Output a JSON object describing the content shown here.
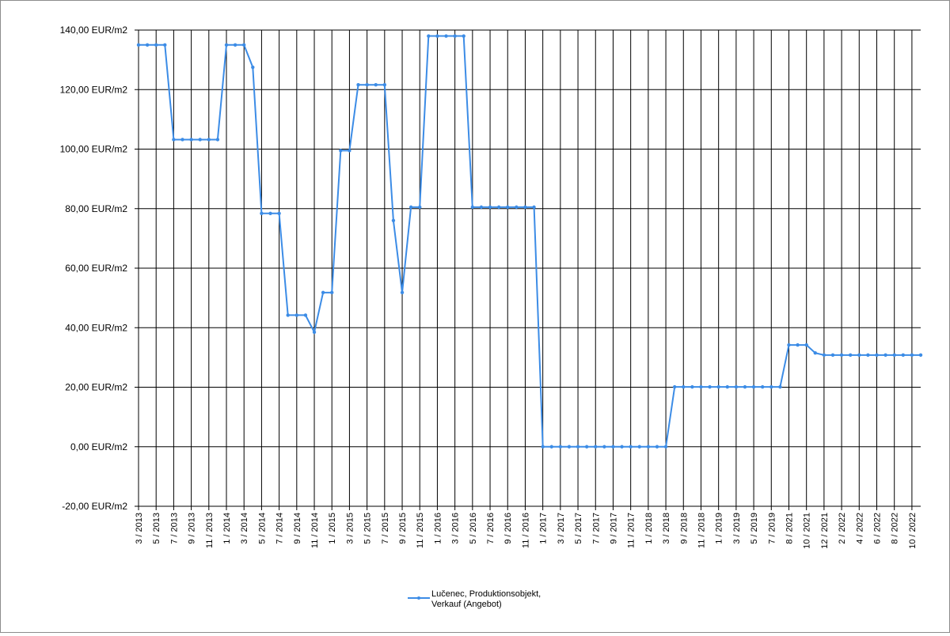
{
  "chart_data": {
    "type": "line",
    "x": [
      "3 / 2013",
      "4 / 2013",
      "5 / 2013",
      "6 / 2013",
      "7 / 2013",
      "8 / 2013",
      "9 / 2013",
      "10 / 2013",
      "11 / 2013",
      "12 / 2013",
      "1 / 2014",
      "2 / 2014",
      "3 / 2014",
      "4 / 2014",
      "5 / 2014",
      "6 / 2014",
      "7 / 2014",
      "8 / 2014",
      "9 / 2014",
      "10 / 2014",
      "11 / 2014",
      "12 / 2014",
      "1 / 2015",
      "2 / 2015",
      "3 / 2015",
      "4 / 2015",
      "5 / 2015",
      "6 / 2015",
      "7 / 2015",
      "8 / 2015",
      "9 / 2015",
      "10 / 2015",
      "11 / 2015",
      "12 / 2015",
      "1 / 2016",
      "2 / 2016",
      "3 / 2016",
      "4 / 2016",
      "5 / 2016",
      "6 / 2016",
      "7 / 2016",
      "8 / 2016",
      "9 / 2016",
      "10 / 2016",
      "11 / 2016",
      "12 / 2016",
      "1 / 2017",
      "2 / 2017",
      "3 / 2017",
      "4 / 2017",
      "5 / 2017",
      "6 / 2017",
      "7 / 2017",
      "8 / 2017",
      "9 / 2017",
      "10 / 2017",
      "11 / 2017",
      "12 / 2017",
      "1 / 2018",
      "2 / 2018",
      "3 / 2018",
      "8 / 2018",
      "9 / 2018",
      "10 / 2018",
      "11 / 2018",
      "12 / 2018",
      "1 / 2019",
      "2 / 2019",
      "3 / 2019",
      "4 / 2019",
      "5 / 2019",
      "6 / 2019",
      "7 / 2019",
      "8 / 2019",
      "8 / 2021",
      "9 / 2021",
      "10 / 2021",
      "11 / 2021",
      "12 / 2021",
      "1 / 2022",
      "2 / 2022",
      "3 / 2022",
      "4 / 2022",
      "5 / 2022",
      "6 / 2022",
      "7 / 2022",
      "8 / 2022",
      "9 / 2022",
      "10 / 2022",
      "11 / 2022"
    ],
    "tick_labels": [
      "3 / 2013",
      "5 / 2013",
      "7 / 2013",
      "9 / 2013",
      "11 / 2013",
      "1 / 2014",
      "3 / 2014",
      "5 / 2014",
      "7 / 2014",
      "9 / 2014",
      "11 / 2014",
      "1 / 2015",
      "3 / 2015",
      "5 / 2015",
      "7 / 2015",
      "9 / 2015",
      "11 / 2015",
      "1 / 2016",
      "3 / 2016",
      "5 / 2016",
      "7 / 2016",
      "9 / 2016",
      "11 / 2016",
      "1 / 2017",
      "3 / 2017",
      "5 / 2017",
      "7 / 2017",
      "9 / 2017",
      "11 / 2017",
      "1 / 2018",
      "3 / 2018",
      "9 / 2018",
      "11 / 2018",
      "1 / 2019",
      "3 / 2019",
      "5 / 2019",
      "7 / 2019",
      "8 / 2021",
      "10 / 2021",
      "12 / 2021",
      "2 / 2022",
      "4 / 2022",
      "6 / 2022",
      "8 / 2022",
      "10 / 2022"
    ],
    "series": [
      {
        "name": "Lučenec, Produktionsobjekt, Verkauf (Angebot)",
        "color": "#3c8ce6",
        "values": [
          135,
          135,
          135,
          135,
          103.2,
          103.2,
          103.2,
          103.2,
          103.2,
          103.2,
          135,
          135,
          135,
          127.5,
          78.4,
          78.4,
          78.4,
          44.2,
          44.2,
          44.2,
          38.5,
          51.8,
          51.8,
          99.5,
          99.5,
          121.6,
          121.6,
          121.6,
          121.6,
          76,
          51.8,
          80.5,
          80.5,
          138,
          138,
          138,
          138,
          138,
          80.5,
          80.5,
          80.5,
          80.5,
          80.5,
          80.5,
          80.5,
          80.5,
          0,
          0,
          0,
          0,
          0,
          0,
          0,
          0,
          0,
          0,
          0,
          0,
          0,
          0,
          0,
          20.1,
          20.1,
          20.1,
          20.1,
          20.1,
          20.1,
          20.1,
          20.1,
          20.1,
          20.1,
          20.1,
          20.1,
          20.1,
          34.2,
          34.2,
          34.2,
          31.5,
          30.8,
          30.8,
          30.8,
          30.8,
          30.8,
          30.8,
          30.8,
          30.8,
          30.8,
          30.8,
          30.8,
          30.8
        ]
      }
    ],
    "ylim": [
      -20,
      140
    ],
    "yticks": [
      -20,
      0,
      20,
      40,
      60,
      80,
      100,
      120,
      140
    ],
    "ytick_labels": [
      "-20,00 EUR/m2",
      "0,00 EUR/m2",
      "20,00 EUR/m2",
      "40,00 EUR/m2",
      "60,00 EUR/m2",
      "80,00 EUR/m2",
      "100,00 EUR/m2",
      "120,00 EUR/m2",
      "140,00 EUR/m2"
    ],
    "grid": true,
    "legend_position": "bottom-center"
  },
  "legend": {
    "line1": "Lučenec, Produktionsobjekt,",
    "line2": "Verkauf (Angebot)"
  }
}
